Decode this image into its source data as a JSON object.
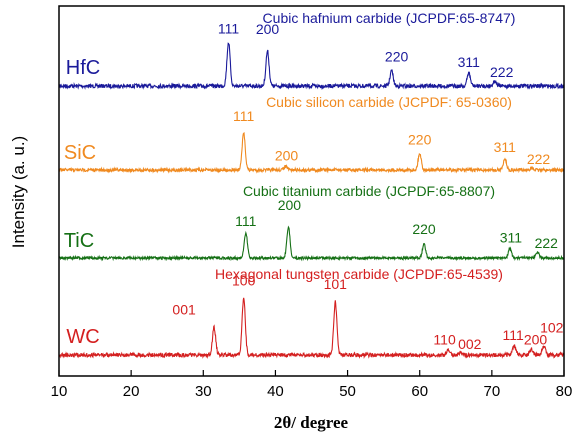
{
  "chart_data": {
    "type": "line",
    "xlabel": "2θ/ degree",
    "ylabel": "Intensity (a. u.)",
    "xlim": [
      10,
      80
    ],
    "xticks": [
      10,
      20,
      30,
      40,
      50,
      60,
      70,
      80
    ],
    "grid": false,
    "series": [
      {
        "name": "HfC",
        "title": "Cubic hafnium carbide (JCPDF:65-8747)",
        "color": "#1a1a9a",
        "peaks": [
          {
            "x": 33.5,
            "label": "111",
            "intensity": 1.0
          },
          {
            "x": 38.9,
            "label": "200",
            "intensity": 0.8
          },
          {
            "x": 56.1,
            "label": "220",
            "intensity": 0.35
          },
          {
            "x": 66.8,
            "label": "311",
            "intensity": 0.3
          },
          {
            "x": 70.4,
            "label": "222",
            "intensity": 0.12
          }
        ]
      },
      {
        "name": "SiC",
        "title": "Cubic silicon carbide (JCPDF: 65-0360)",
        "color": "#f08a20",
        "peaks": [
          {
            "x": 35.6,
            "label": "111",
            "intensity": 1.0
          },
          {
            "x": 41.4,
            "label": "200",
            "intensity": 0.1
          },
          {
            "x": 60.0,
            "label": "220",
            "intensity": 0.45
          },
          {
            "x": 71.8,
            "label": "311",
            "intensity": 0.3
          },
          {
            "x": 75.5,
            "label": "222",
            "intensity": 0.05
          }
        ]
      },
      {
        "name": "TiC",
        "title": "Cubic titanium carbide (JCPDF:65-8807)",
        "color": "#157015",
        "peaks": [
          {
            "x": 35.9,
            "label": "111",
            "intensity": 0.8
          },
          {
            "x": 41.8,
            "label": "200",
            "intensity": 1.0
          },
          {
            "x": 60.6,
            "label": "220",
            "intensity": 0.45
          },
          {
            "x": 72.5,
            "label": "311",
            "intensity": 0.3
          },
          {
            "x": 76.3,
            "label": "222",
            "intensity": 0.2
          }
        ]
      },
      {
        "name": "WC",
        "title": "Hexagonal tungsten carbide (JCPDF:65-4539)",
        "color": "#d42020",
        "peaks": [
          {
            "x": 31.5,
            "label": "001",
            "intensity": 0.48
          },
          {
            "x": 35.6,
            "label": "100",
            "intensity": 1.0
          },
          {
            "x": 48.3,
            "label": "101",
            "intensity": 0.92
          },
          {
            "x": 64.0,
            "label": "110",
            "intensity": 0.1
          },
          {
            "x": 65.7,
            "label": "002",
            "intensity": 0.05
          },
          {
            "x": 73.1,
            "label": "111",
            "intensity": 0.17
          },
          {
            "x": 75.5,
            "label": "200",
            "intensity": 0.1
          },
          {
            "x": 77.2,
            "label": "102",
            "intensity": 0.15
          }
        ]
      }
    ]
  }
}
